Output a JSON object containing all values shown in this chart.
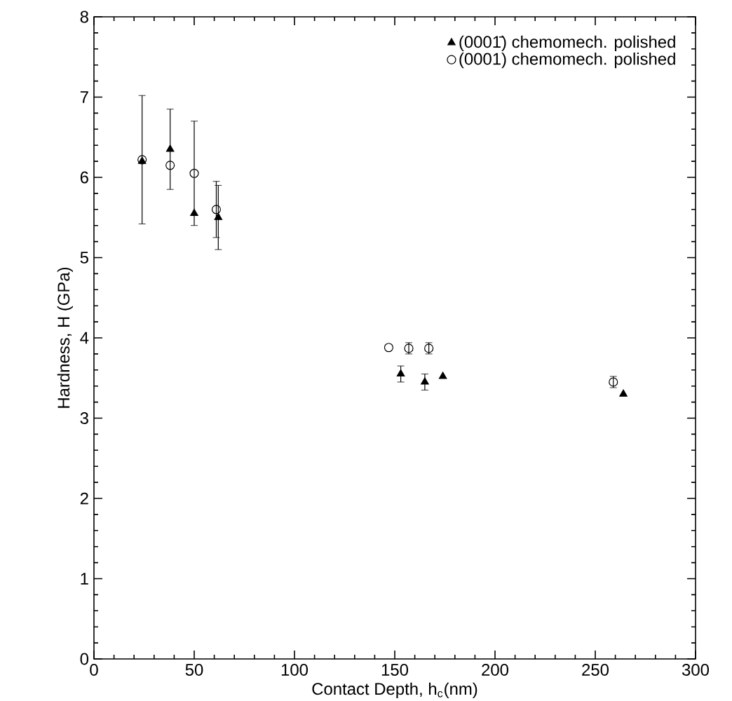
{
  "chart_data": {
    "type": "scatter",
    "xlabel": "Contact Depth, h$_{c}$(nm)",
    "ylabel": "Hardness, H (GPa)",
    "xlim": [
      0,
      300
    ],
    "xticks": [
      0,
      50,
      100,
      150,
      200,
      250,
      300
    ],
    "ylim": [
      0,
      8
    ],
    "yticks": [
      0,
      1,
      2,
      3,
      4,
      5,
      6,
      7,
      8
    ],
    "grid": false,
    "legend": "top right",
    "series": [
      {
        "name": "(0001̄) chemomech. polished",
        "color": "#000000",
        "marker": "triangle",
        "x": [
          24,
          38,
          50,
          62,
          153,
          165,
          174,
          264
        ],
        "values": [
          6.2,
          6.35,
          5.55,
          5.5,
          3.55,
          3.45,
          3.52,
          3.3
        ],
        "errors": [
          null,
          0.5,
          null,
          0.4,
          0.1,
          0.1,
          null,
          null
        ]
      },
      {
        "name": "(0001) chemomech. polished",
        "color": "#000000",
        "marker": "circle",
        "x": [
          24,
          38,
          50,
          61,
          147,
          157,
          167,
          259
        ],
        "values": [
          6.22,
          6.15,
          6.05,
          5.6,
          3.88,
          3.87,
          3.87,
          3.45
        ],
        "errors": [
          0.8,
          null,
          0.65,
          0.35,
          null,
          0.07,
          0.07,
          0.07
        ]
      }
    ]
  }
}
